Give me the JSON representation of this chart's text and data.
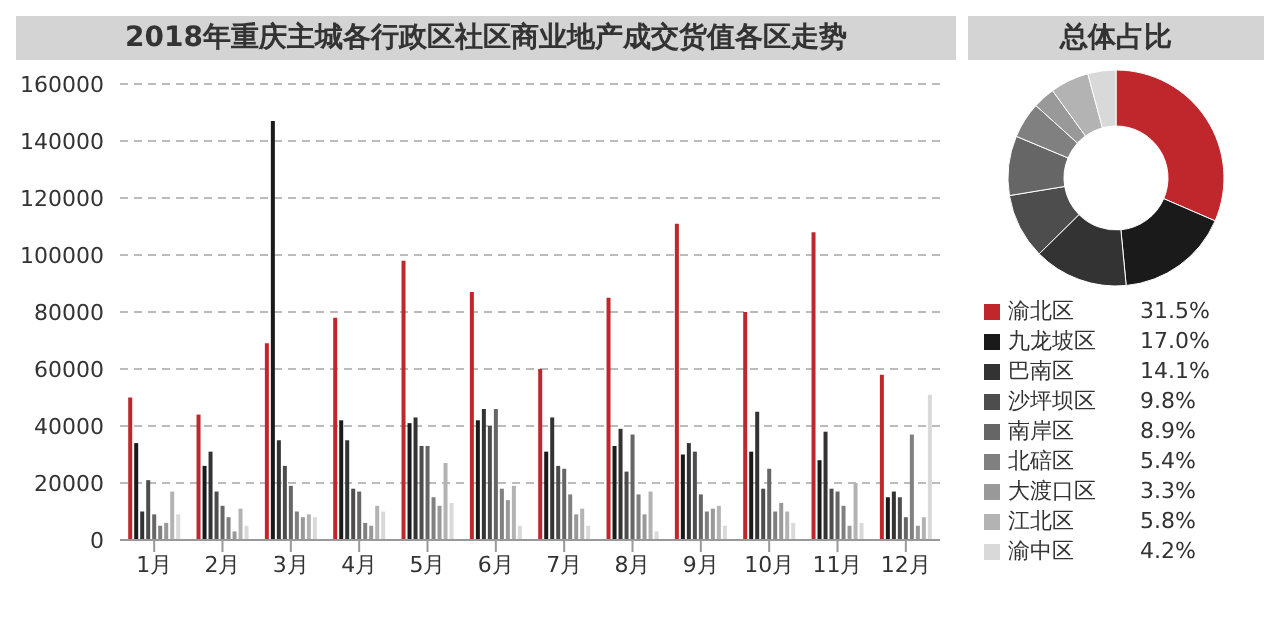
{
  "chart_data": [
    {
      "type": "bar",
      "title": "2018年重庆主城各行政区社区商业地产成交货值各区走势",
      "categories": [
        "1月",
        "2月",
        "3月",
        "4月",
        "5月",
        "6月",
        "7月",
        "8月",
        "9月",
        "10月",
        "11月",
        "12月"
      ],
      "ylim": [
        0,
        160000
      ],
      "yticks": [
        0,
        20000,
        40000,
        60000,
        80000,
        100000,
        120000,
        140000,
        160000
      ],
      "grid": "y",
      "legend": false,
      "series": [
        {
          "color": "#c0272d",
          "values": [
            50000,
            44000,
            69000,
            78000,
            98000,
            87000,
            60000,
            85000,
            111000,
            80000,
            108000,
            58000
          ]
        },
        {
          "color": "#1a1a1a",
          "values": [
            34000,
            26000,
            147000,
            42000,
            41000,
            42000,
            31000,
            33000,
            30000,
            31000,
            28000,
            15000
          ]
        },
        {
          "color": "#333333",
          "values": [
            10000,
            31000,
            35000,
            35000,
            43000,
            46000,
            43000,
            39000,
            34000,
            45000,
            38000,
            17000
          ]
        },
        {
          "color": "#4d4d4d",
          "values": [
            21000,
            17000,
            26000,
            18000,
            33000,
            40000,
            26000,
            24000,
            31000,
            18000,
            18000,
            15000
          ]
        },
        {
          "color": "#666666",
          "values": [
            9000,
            12000,
            19000,
            17000,
            33000,
            46000,
            25000,
            37000,
            16000,
            25000,
            17000,
            8000
          ]
        },
        {
          "color": "#808080",
          "values": [
            5000,
            8000,
            10000,
            6000,
            15000,
            18000,
            16000,
            16000,
            10000,
            10000,
            12000,
            37000
          ]
        },
        {
          "color": "#999999",
          "values": [
            6000,
            3000,
            8000,
            5000,
            12000,
            14000,
            9000,
            9000,
            11000,
            13000,
            5000,
            5000
          ]
        },
        {
          "color": "#b3b3b3",
          "values": [
            17000,
            11000,
            9000,
            12000,
            27000,
            19000,
            11000,
            17000,
            12000,
            10000,
            20000,
            8000
          ]
        },
        {
          "color": "#d9d9d9",
          "values": [
            9000,
            5000,
            8000,
            10000,
            13000,
            5000,
            5000,
            3000,
            5000,
            6000,
            6000,
            51000
          ]
        }
      ]
    },
    {
      "type": "donut",
      "title": "总体占比",
      "legend": "bottom",
      "categories": [
        "渝北区",
        "九龙坡区",
        "巴南区",
        "沙坪坝区",
        "南岸区",
        "北碚区",
        "大渡口区",
        "江北区",
        "渝中区"
      ],
      "values": [
        31.5,
        17.0,
        14.1,
        9.8,
        8.9,
        5.4,
        3.3,
        5.8,
        4.2
      ],
      "value_labels": [
        "31.5%",
        "17.0%",
        "14.1%",
        "9.8%",
        "8.9%",
        "5.4%",
        "3.3%",
        "5.8%",
        "4.2%"
      ],
      "colors": [
        "#c0272d",
        "#1a1a1a",
        "#333333",
        "#4d4d4d",
        "#666666",
        "#808080",
        "#999999",
        "#b3b3b3",
        "#d9d9d9"
      ]
    }
  ]
}
